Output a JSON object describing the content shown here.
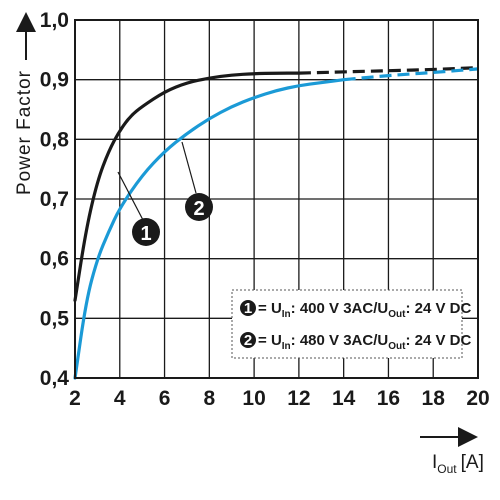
{
  "chart_data": {
    "type": "line",
    "xlabel": "I",
    "xlabel_sub": "Out",
    "xlabel_unit": "[A]",
    "ylabel": "Power Factor",
    "xlim": [
      2,
      20
    ],
    "ylim": [
      0.4,
      1.0
    ],
    "x_ticks": [
      "2",
      "4",
      "6",
      "8",
      "10",
      "12",
      "14",
      "16",
      "18",
      "20"
    ],
    "y_ticks": [
      "0,4",
      "0,5",
      "0,6",
      "0,7",
      "0,8",
      "0,9",
      "1,0"
    ],
    "grid": true,
    "legend_position": "bottom-right",
    "series": [
      {
        "name": "U_In: 400 V 3AC/U_Out: 24 V DC",
        "label": "1",
        "color": "#1a1a1a",
        "solid_until_x": 12.5,
        "x": [
          2,
          2.5,
          3,
          3.5,
          4,
          4.5,
          5,
          6,
          7,
          8,
          9,
          10,
          11,
          12,
          13,
          14,
          16,
          18,
          20
        ],
        "y": [
          0.53,
          0.65,
          0.73,
          0.78,
          0.815,
          0.84,
          0.855,
          0.88,
          0.895,
          0.903,
          0.908,
          0.91,
          0.911,
          0.911,
          0.912,
          0.913,
          0.915,
          0.917,
          0.92
        ]
      },
      {
        "name": "U_In: 480 V 3AC/U_Out: 24 V DC",
        "label": "2",
        "color": "#1b9ad6",
        "solid_until_x": 14,
        "x": [
          2,
          2.5,
          3,
          3.5,
          4,
          5,
          6,
          7,
          8,
          9,
          10,
          11,
          12,
          13,
          14,
          16,
          18,
          20
        ],
        "y": [
          0.4,
          0.53,
          0.6,
          0.645,
          0.685,
          0.74,
          0.78,
          0.81,
          0.835,
          0.855,
          0.87,
          0.882,
          0.89,
          0.895,
          0.9,
          0.907,
          0.912,
          0.918
        ]
      }
    ],
    "legend": [
      {
        "label": "1",
        "u": "U",
        "in": "In",
        "mid": ": 400 V 3AC/U",
        "out": "Out",
        "tail": ": 24 V DC"
      },
      {
        "label": "2",
        "u": "U",
        "in": "In",
        "mid": ": 480 V 3AC/U",
        "out": "Out",
        "tail": ": 24 V DC"
      }
    ]
  }
}
